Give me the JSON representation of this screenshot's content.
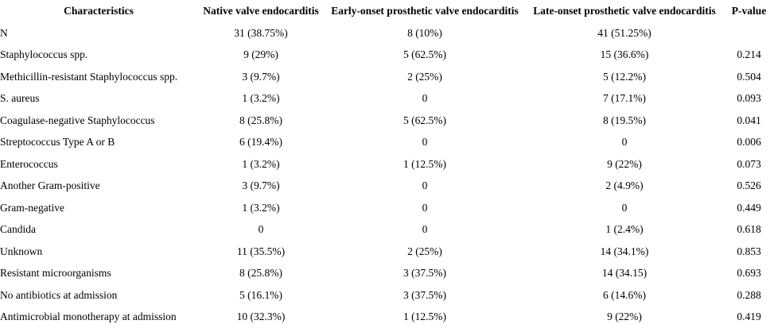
{
  "table": {
    "text_color": "#000000",
    "background_color": "#ffffff",
    "columns": [
      "Characteristics",
      "Native valve endocarditis",
      "Early-onset prosthetic valve endocarditis",
      "Late-onset prosthetic valve endocarditis",
      "P-value"
    ],
    "rows": [
      [
        "N",
        "31 (38.75%)",
        "8 (10%)",
        "41 (51.25%)",
        ""
      ],
      [
        "Staphylococcus spp.",
        "9 (29%)",
        "5 (62.5%)",
        "15 (36.6%)",
        "0.214"
      ],
      [
        "Methicillin-resistant Staphylococcus spp.",
        "3 (9.7%)",
        "2 (25%)",
        "5 (12.2%)",
        "0.504"
      ],
      [
        "S. aureus",
        "1 (3.2%)",
        "0",
        "7 (17.1%)",
        "0.093"
      ],
      [
        "Coagulase-negative Staphylococcus",
        "8 (25.8%)",
        "5 (62.5%)",
        "8 (19.5%)",
        "0.041"
      ],
      [
        "Streptococcus Type A or B",
        "6 (19.4%)",
        "0",
        "0",
        "0.006"
      ],
      [
        "Enterococcus",
        "1 (3.2%)",
        "1 (12.5%)",
        "9 (22%)",
        "0.073"
      ],
      [
        "Another Gram-positive",
        "3 (9.7%)",
        "0",
        "2 (4.9%)",
        "0.526"
      ],
      [
        "Gram-negative",
        "1 (3.2%)",
        "0",
        "0",
        "0.449"
      ],
      [
        "Candida",
        "0",
        "0",
        "1 (2.4%)",
        "0.618"
      ],
      [
        "Unknown",
        "11 (35.5%)",
        "2 (25%)",
        "14 (34.1%)",
        "0.853"
      ],
      [
        "Resistant microorganisms",
        "8 (25.8%)",
        "3 (37.5%)",
        "14 (34.15)",
        "0.693"
      ],
      [
        "No antibiotics at admission",
        "5 (16.1%)",
        "3 (37.5%)",
        "6 (14.6%)",
        "0.288"
      ],
      [
        "Antimicrobial monotherapy at admission",
        "10 (32.3%)",
        "1 (12.5%)",
        "9 (22%)",
        "0.419"
      ]
    ]
  }
}
